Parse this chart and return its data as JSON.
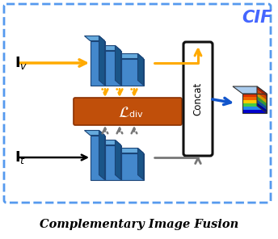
{
  "fig_width": 3.44,
  "fig_height": 2.96,
  "dpi": 100,
  "bg_color": "#ffffff",
  "border_color": "#5599ee",
  "cif_label": "CIF",
  "cif_color": "#4466ff",
  "bottom_label": "Complementary Image Fusion",
  "concat_label": "Concat",
  "orange_box_color": "#c04f0a",
  "blue_face": "#4488cc",
  "blue_top": "#66aadd",
  "blue_side": "#1a5588",
  "concat_box_color": "#ffffff",
  "concat_box_border": "#111111",
  "arrow_yellow": "#ffaa00",
  "arrow_gray": "#777777",
  "arrow_blue": "#1155cc",
  "feat_colors_front": [
    "#dd3300",
    "#ee6600",
    "#ffcc00",
    "#44cc44",
    "#2288ee",
    "#0000cc"
  ],
  "feat_colors_side": [
    "#aa2200",
    "#cc4400",
    "#cc9900",
    "#339933",
    "#115599",
    "#000099"
  ],
  "feat_top_color": "#aaccee"
}
